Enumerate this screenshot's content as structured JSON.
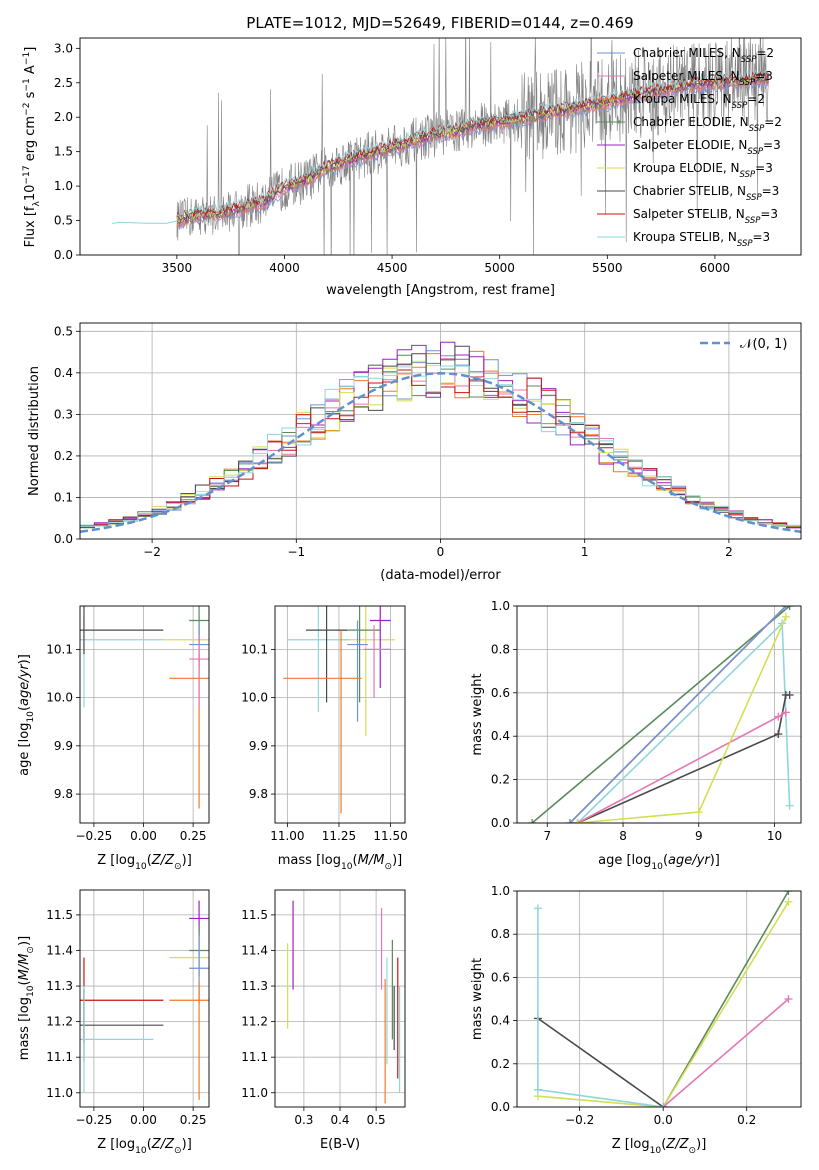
{
  "colors": {
    "chabrier_miles": "#6f93d6",
    "salpeter_miles": "#e677b4",
    "kroupa_miles": "#ef7a2a",
    "chabrier_elodie": "#5a8a5a",
    "salpeter_elodie": "#a020c0",
    "kroupa_elodie": "#d4de55",
    "chabrier_stelib": "#4a4a4a",
    "salpeter_stelib": "#cc1111",
    "kroupa_stelib": "#8fd6dc",
    "data": "#808080",
    "normal": "#6090d0"
  },
  "chart_data": [
    {
      "id": "spectrum",
      "type": "line",
      "title": "PLATE=1012, MJD=52649, FIBERID=0144, z=0.469",
      "xlabel": "wavelength [Angstrom, rest frame]",
      "ylabel": "Flux [f_λ 10^-17 erg cm^-2 s^-1 A^-1]",
      "xlim": [
        3050,
        6400
      ],
      "ylim": [
        0,
        3.15
      ],
      "xticks": [
        "3500",
        "4000",
        "4500",
        "5000",
        "5500",
        "6000"
      ],
      "yticks": [
        "0.0",
        "0.5",
        "1.0",
        "1.5",
        "2.0",
        "2.5",
        "3.0"
      ],
      "grid": false,
      "legend_position": "upper-right",
      "legend": [
        {
          "label": "Chabrier MILES, N",
          "sub": "SSP",
          "tail": "=2",
          "color_key": "chabrier_miles"
        },
        {
          "label": "Salpeter MILES, N",
          "sub": "SSP",
          "tail": "=3",
          "color_key": "salpeter_miles"
        },
        {
          "label": "Kroupa MILES, N",
          "sub": "SSP",
          "tail": "=2",
          "color_key": "kroupa_miles"
        },
        {
          "label": "Chabrier ELODIE, N",
          "sub": "SSP",
          "tail": "=2",
          "color_key": "chabrier_elodie"
        },
        {
          "label": "Salpeter ELODIE, N",
          "sub": "SSP",
          "tail": "=3",
          "color_key": "salpeter_elodie"
        },
        {
          "label": "Kroupa ELODIE, N",
          "sub": "SSP",
          "tail": "=3",
          "color_key": "kroupa_elodie"
        },
        {
          "label": "Chabrier STELIB, N",
          "sub": "SSP",
          "tail": "=3",
          "color_key": "chabrier_stelib"
        },
        {
          "label": "Salpeter STELIB, N",
          "sub": "SSP",
          "tail": "=3",
          "color_key": "salpeter_stelib"
        },
        {
          "label": "Kroupa STELIB, N",
          "sub": "SSP",
          "tail": "=3",
          "color_key": "kroupa_stelib"
        }
      ],
      "model_continuum": {
        "x": [
          3200,
          3300,
          3400,
          3500,
          3600,
          3700,
          3800,
          3900,
          4000,
          4100,
          4200,
          4300,
          4400,
          4500,
          4600,
          4700,
          4800,
          4900,
          5000,
          5100,
          5200,
          5300,
          5400,
          5500,
          5600,
          5700,
          5800,
          5900,
          6000,
          6100,
          6200
        ],
        "y": [
          0.47,
          0.48,
          0.45,
          0.5,
          0.58,
          0.6,
          0.68,
          0.76,
          0.98,
          1.08,
          1.27,
          1.38,
          1.47,
          1.56,
          1.66,
          1.75,
          1.8,
          1.88,
          1.93,
          1.98,
          2.05,
          2.1,
          2.16,
          2.22,
          2.3,
          2.36,
          2.42,
          2.48,
          2.5,
          2.52,
          2.55
        ]
      }
    },
    {
      "id": "residuals",
      "type": "bar",
      "xlabel": "(data-model)/error",
      "ylabel": "Normed distribution",
      "xlim": [
        -2.5,
        2.5
      ],
      "ylim": [
        0,
        0.52
      ],
      "xticks": [
        {
          "v": -2,
          "label": "−2"
        },
        {
          "v": -1,
          "label": "−1"
        },
        {
          "v": 0,
          "label": "0"
        },
        {
          "v": 1,
          "label": "1"
        },
        {
          "v": 2,
          "label": "2"
        }
      ],
      "yticks": [
        {
          "v": 0,
          "label": "0.0"
        },
        {
          "v": 0.1,
          "label": "0.1"
        },
        {
          "v": 0.2,
          "label": "0.2"
        },
        {
          "v": 0.3,
          "label": "0.3"
        },
        {
          "v": 0.4,
          "label": "0.4"
        },
        {
          "v": 0.5,
          "label": "0.5"
        }
      ],
      "grid": true,
      "legend_position": "upper-right",
      "normal_label": "𝒩(0, 1)",
      "bin_width": 0.1,
      "bins_start": -2.5
    },
    {
      "id": "age_vs_Z",
      "type": "scatter",
      "xlabel": "Z [log10(Z/Z⊙)]",
      "ylabel": "age [log10(age/yr)]",
      "xlim": [
        -0.32,
        0.33
      ],
      "ylim": [
        9.74,
        10.19
      ],
      "xticks": [
        {
          "v": -0.25,
          "label": "−0.25"
        },
        {
          "v": 0,
          "label": "0.00"
        },
        {
          "v": 0.25,
          "label": "0.25"
        }
      ],
      "yticks": [
        {
          "v": 9.8,
          "label": "9.8"
        },
        {
          "v": 9.9,
          "label": "9.9"
        },
        {
          "v": 10.0,
          "label": "10.0"
        },
        {
          "v": 10.1,
          "label": "10.1"
        }
      ],
      "grid": true
    },
    {
      "id": "age_vs_mass",
      "type": "scatter",
      "xlabel": "mass [log10(M/M⊙)]",
      "xlim": [
        10.94,
        11.57
      ],
      "ylim": [
        9.74,
        10.19
      ],
      "xticks": [
        {
          "v": 11.0,
          "label": "11.00"
        },
        {
          "v": 11.25,
          "label": "11.25"
        },
        {
          "v": 11.5,
          "label": "11.50"
        }
      ],
      "yticks": [
        {
          "v": 9.8,
          "label": "9.8"
        },
        {
          "v": 9.9,
          "label": "9.9"
        },
        {
          "v": 10.0,
          "label": "10.0"
        },
        {
          "v": 10.1,
          "label": "10.1"
        }
      ],
      "grid": true
    },
    {
      "id": "weight_vs_age",
      "type": "line",
      "xlabel": "age [log10(age/yr)]",
      "ylabel": "mass weight",
      "xlim": [
        6.6,
        10.35
      ],
      "ylim": [
        0,
        1
      ],
      "xticks": [
        {
          "v": 7,
          "label": "7"
        },
        {
          "v": 8,
          "label": "8"
        },
        {
          "v": 9,
          "label": "9"
        },
        {
          "v": 10,
          "label": "10"
        }
      ],
      "yticks": [
        {
          "v": 0,
          "label": "0.0"
        },
        {
          "v": 0.2,
          "label": "0.2"
        },
        {
          "v": 0.4,
          "label": "0.4"
        },
        {
          "v": 0.6,
          "label": "0.6"
        },
        {
          "v": 0.8,
          "label": "0.8"
        },
        {
          "v": 1,
          "label": "1.0"
        }
      ],
      "grid": true,
      "series": [
        {
          "color_key": "chabrier_elodie",
          "x": [
            6.8,
            10.2
          ],
          "y": [
            0.0,
            1.0
          ]
        },
        {
          "color_key": "kroupa_miles",
          "x": [
            7.3,
            10.15
          ],
          "y": [
            0.0,
            1.0
          ]
        },
        {
          "color_key": "chabrier_miles",
          "x": [
            7.3,
            10.15
          ],
          "y": [
            0.0,
            1.0
          ]
        },
        {
          "color_key": "kroupa_stelib",
          "x": [
            7.4,
            10.1,
            10.2
          ],
          "y": [
            0.0,
            0.92,
            0.08
          ]
        },
        {
          "color_key": "chabrier_stelib",
          "x": [
            7.4,
            10.05,
            10.15,
            10.2
          ],
          "y": [
            0.0,
            0.41,
            0.59,
            0.59
          ]
        },
        {
          "color_key": "salpeter_miles",
          "x": [
            7.4,
            10.05,
            10.15
          ],
          "y": [
            0.0,
            0.49,
            0.51
          ]
        },
        {
          "color_key": "kroupa_elodie",
          "x": [
            7.4,
            9.0,
            10.15
          ],
          "y": [
            0.0,
            0.05,
            0.95
          ]
        }
      ]
    },
    {
      "id": "mass_vs_Z",
      "type": "scatter",
      "xlabel": "Z [log10(Z/Z⊙)]",
      "ylabel": "mass [log10(M/M⊙)]",
      "xlim": [
        -0.32,
        0.33
      ],
      "ylim": [
        10.96,
        11.57
      ],
      "xticks": [
        {
          "v": -0.25,
          "label": "−0.25"
        },
        {
          "v": 0,
          "label": "0.00"
        },
        {
          "v": 0.25,
          "label": "0.25"
        }
      ],
      "yticks": [
        {
          "v": 11.0,
          "label": "11.0"
        },
        {
          "v": 11.1,
          "label": "11.1"
        },
        {
          "v": 11.2,
          "label": "11.2"
        },
        {
          "v": 11.3,
          "label": "11.3"
        },
        {
          "v": 11.4,
          "label": "11.4"
        },
        {
          "v": 11.5,
          "label": "11.5"
        }
      ],
      "grid": true
    },
    {
      "id": "mass_vs_ebv",
      "type": "scatter",
      "xlabel": "E(B-V)",
      "xlim": [
        0.22,
        0.58
      ],
      "ylim": [
        10.96,
        11.57
      ],
      "xticks": [
        {
          "v": 0.3,
          "label": "0.3"
        },
        {
          "v": 0.4,
          "label": "0.4"
        },
        {
          "v": 0.5,
          "label": "0.5"
        }
      ],
      "yticks": [
        {
          "v": 11.0,
          "label": "11.0"
        },
        {
          "v": 11.1,
          "label": "11.1"
        },
        {
          "v": 11.2,
          "label": "11.2"
        },
        {
          "v": 11.3,
          "label": "11.3"
        },
        {
          "v": 11.4,
          "label": "11.4"
        },
        {
          "v": 11.5,
          "label": "11.5"
        }
      ],
      "grid": true
    },
    {
      "id": "weight_vs_Z",
      "type": "line",
      "xlabel": "Z [log10(Z/Z⊙)]",
      "ylabel": "mass weight",
      "xlim": [
        -0.35,
        0.33
      ],
      "ylim": [
        0,
        1
      ],
      "xticks": [
        {
          "v": -0.2,
          "label": "−0.2"
        },
        {
          "v": 0,
          "label": "0.0"
        },
        {
          "v": 0.2,
          "label": "0.2"
        }
      ],
      "yticks": [
        {
          "v": 0,
          "label": "0.0"
        },
        {
          "v": 0.2,
          "label": "0.2"
        },
        {
          "v": 0.4,
          "label": "0.4"
        },
        {
          "v": 0.6,
          "label": "0.6"
        },
        {
          "v": 0.8,
          "label": "0.8"
        },
        {
          "v": 1,
          "label": "1.0"
        }
      ],
      "grid": true,
      "series": [
        {
          "color_key": "chabrier_elodie",
          "x": [
            0.0,
            0.3
          ],
          "y": [
            0.0,
            1.0
          ]
        },
        {
          "color_key": "kroupa_elodie",
          "x": [
            -0.3,
            0.0,
            0.3
          ],
          "y": [
            0.05,
            0.0,
            0.95
          ]
        },
        {
          "color_key": "salpeter_miles",
          "x": [
            0.0,
            0.3
          ],
          "y": [
            0.0,
            0.5
          ]
        },
        {
          "color_key": "chabrier_stelib",
          "x": [
            -0.3,
            0.0
          ],
          "y": [
            0.41,
            0.0
          ]
        },
        {
          "color_key": "kroupa_stelib",
          "x": [
            -0.3,
            0.0
          ],
          "y": [
            0.08,
            0.0
          ]
        },
        {
          "color_key": "kroupa_stelib",
          "x": [
            -0.3,
            -0.3
          ],
          "y": [
            0.08,
            0.92
          ]
        }
      ]
    }
  ]
}
